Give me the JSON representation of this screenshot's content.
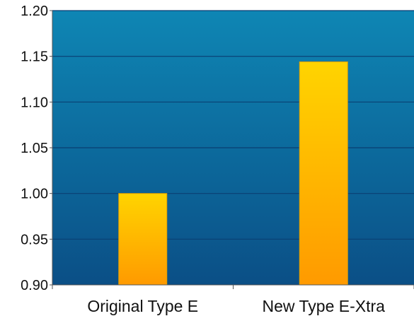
{
  "chart_data": {
    "type": "bar",
    "categories": [
      "Original Type E",
      "New Type E-Xtra"
    ],
    "values": [
      1.0,
      1.144
    ],
    "ylim": [
      0.9,
      1.2
    ],
    "y_ticks": [
      "0.90",
      "0.95",
      "1.00",
      "1.05",
      "1.10",
      "1.15",
      "1.20"
    ],
    "grid": true,
    "colors": {
      "plot_top": "#0E86B4",
      "plot_bottom": "#0B4F86",
      "gridline": "#0A3F73",
      "bar_top": "#FFD400",
      "bar_bottom": "#FF9A00",
      "bar_outline": "#E2A000"
    }
  }
}
